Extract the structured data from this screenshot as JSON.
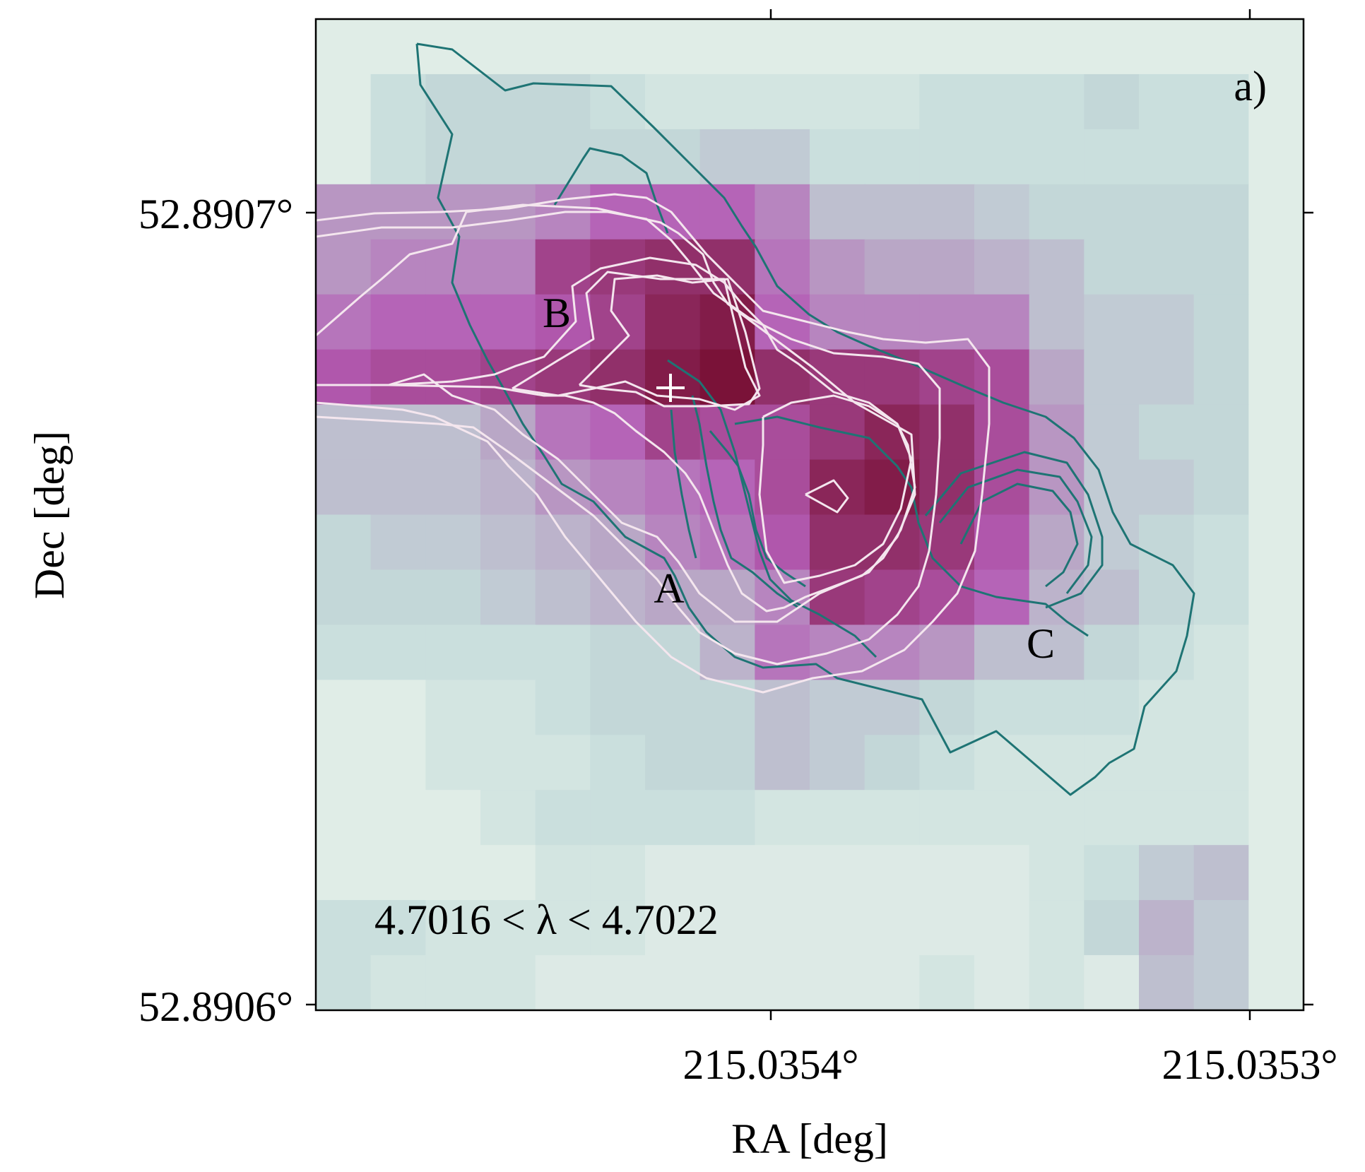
{
  "chart_data": {
    "type": "heatmap",
    "panel_label": "a)",
    "xlabel": "RA [deg]",
    "ylabel": "Dec [deg]",
    "x_ticks": [
      "215.0354°",
      "215.0353°"
    ],
    "y_ticks": [
      "52.8907°",
      "52.8906°"
    ],
    "annotation": "4.7016 < λ < 4.7022",
    "component_labels": [
      "A",
      "B",
      "C"
    ],
    "marker": "+",
    "colormap": {
      "low": "#e6f0ea",
      "mid1": "#c4dcda",
      "mid2": "#b9a7c6",
      "mid3": "#b55db6",
      "high": "#7a1238"
    },
    "contour_colors": {
      "teal": "#1e7474",
      "white": "#f4e6ee"
    },
    "grid_rows": [
      [
        0.03,
        0.03,
        0.03,
        0.03,
        0.03,
        0.03,
        0.03,
        0.03,
        0.03,
        0.03,
        0.03,
        0.03,
        0.03,
        0.03,
        0.03,
        0.03,
        0.03,
        0.03
      ],
      [
        0.03,
        0.15,
        0.2,
        0.2,
        0.2,
        0.15,
        0.1,
        0.1,
        0.1,
        0.1,
        0.1,
        0.15,
        0.15,
        0.15,
        0.2,
        0.15,
        0.15,
        0.03
      ],
      [
        0.03,
        0.15,
        0.2,
        0.2,
        0.2,
        0.2,
        0.2,
        0.25,
        0.25,
        0.15,
        0.15,
        0.15,
        0.15,
        0.15,
        0.15,
        0.15,
        0.15,
        0.03
      ],
      [
        0.45,
        0.45,
        0.45,
        0.45,
        0.5,
        0.6,
        0.6,
        0.6,
        0.5,
        0.3,
        0.3,
        0.3,
        0.25,
        0.2,
        0.2,
        0.2,
        0.2,
        0.03
      ],
      [
        0.45,
        0.5,
        0.5,
        0.5,
        0.75,
        0.8,
        0.85,
        0.85,
        0.55,
        0.45,
        0.4,
        0.4,
        0.35,
        0.3,
        0.2,
        0.2,
        0.2,
        0.03
      ],
      [
        0.55,
        0.6,
        0.6,
        0.6,
        0.65,
        0.75,
        0.9,
        0.95,
        0.6,
        0.5,
        0.5,
        0.5,
        0.5,
        0.3,
        0.25,
        0.25,
        0.2,
        0.03
      ],
      [
        0.65,
        0.7,
        0.7,
        0.75,
        0.8,
        0.85,
        0.95,
        1.0,
        0.85,
        0.8,
        0.8,
        0.75,
        0.7,
        0.4,
        0.25,
        0.25,
        0.2,
        0.03
      ],
      [
        0.3,
        0.3,
        0.3,
        0.4,
        0.55,
        0.6,
        0.75,
        0.7,
        0.7,
        0.8,
        0.9,
        0.85,
        0.7,
        0.45,
        0.25,
        0.2,
        0.2,
        0.03
      ],
      [
        0.3,
        0.3,
        0.3,
        0.35,
        0.45,
        0.5,
        0.55,
        0.6,
        0.7,
        0.9,
        0.95,
        0.85,
        0.7,
        0.45,
        0.25,
        0.25,
        0.2,
        0.03
      ],
      [
        0.2,
        0.25,
        0.25,
        0.3,
        0.35,
        0.4,
        0.5,
        0.55,
        0.65,
        0.85,
        0.85,
        0.8,
        0.65,
        0.4,
        0.25,
        0.2,
        0.15,
        0.03
      ],
      [
        0.2,
        0.2,
        0.2,
        0.25,
        0.3,
        0.35,
        0.4,
        0.4,
        0.5,
        0.8,
        0.75,
        0.7,
        0.6,
        0.35,
        0.3,
        0.2,
        0.15,
        0.03
      ],
      [
        0.15,
        0.15,
        0.15,
        0.15,
        0.15,
        0.2,
        0.2,
        0.35,
        0.55,
        0.5,
        0.5,
        0.45,
        0.3,
        0.3,
        0.2,
        0.15,
        0.1,
        0.03
      ],
      [
        0.03,
        0.03,
        0.1,
        0.1,
        0.15,
        0.2,
        0.2,
        0.2,
        0.3,
        0.25,
        0.25,
        0.2,
        0.15,
        0.15,
        0.15,
        0.1,
        0.1,
        0.03
      ],
      [
        0.03,
        0.03,
        0.1,
        0.1,
        0.1,
        0.15,
        0.2,
        0.2,
        0.3,
        0.25,
        0.2,
        0.15,
        0.1,
        0.1,
        0.1,
        0.1,
        0.1,
        0.03
      ],
      [
        0.03,
        0.03,
        0.03,
        0.1,
        0.15,
        0.15,
        0.15,
        0.15,
        0.1,
        0.1,
        0.1,
        0.1,
        0.1,
        0.1,
        0.1,
        0.1,
        0.1,
        0.03
      ],
      [
        0.03,
        0.03,
        0.03,
        0.03,
        0.1,
        0.1,
        0.05,
        0.05,
        0.05,
        0.05,
        0.05,
        0.05,
        0.05,
        0.1,
        0.15,
        0.25,
        0.3,
        0.03
      ],
      [
        0.15,
        0.15,
        0.1,
        0.1,
        0.1,
        0.1,
        0.05,
        0.05,
        0.05,
        0.05,
        0.05,
        0.05,
        0.05,
        0.1,
        0.2,
        0.35,
        0.25,
        0.03
      ],
      [
        0.15,
        0.1,
        0.1,
        0.1,
        0.05,
        0.05,
        0.05,
        0.05,
        0.05,
        0.05,
        0.05,
        0.1,
        0.05,
        0.1,
        0.05,
        0.3,
        0.25,
        0.03
      ]
    ]
  }
}
